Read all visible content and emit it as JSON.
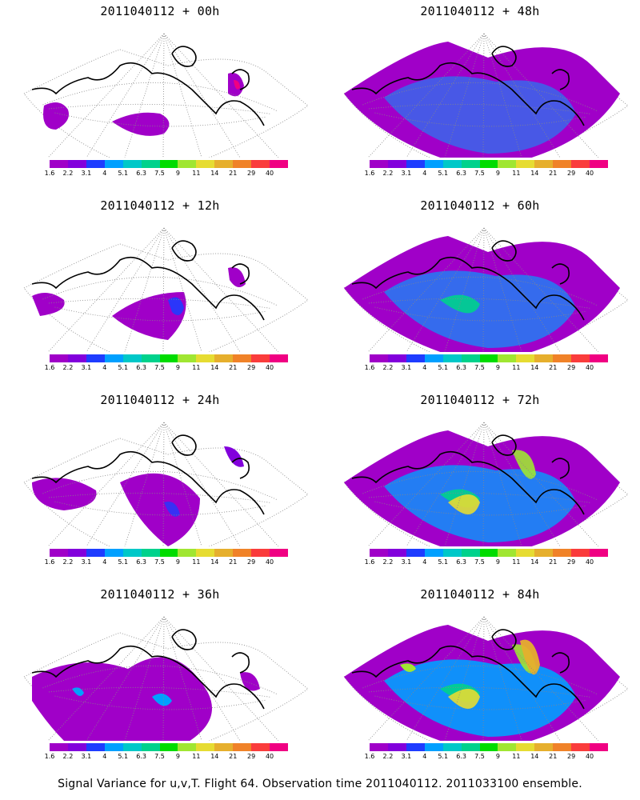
{
  "caption": "Signal Variance for u,v,T. Flight 64. Observation time 2011040112. 2011033100 ensemble.",
  "panels": [
    {
      "title": "2011040112 + 00h",
      "lead": 0
    },
    {
      "title": "2011040112 + 48h",
      "lead": 48
    },
    {
      "title": "2011040112 + 12h",
      "lead": 12
    },
    {
      "title": "2011040112 + 60h",
      "lead": 60
    },
    {
      "title": "2011040112 + 24h",
      "lead": 24
    },
    {
      "title": "2011040112 + 72h",
      "lead": 72
    },
    {
      "title": "2011040112 + 36h",
      "lead": 36
    },
    {
      "title": "2011040112 + 84h",
      "lead": 84
    }
  ],
  "colorbar": {
    "labels": [
      "1.6",
      "2.2",
      "3.1",
      "4",
      "5.1",
      "6.3",
      "7.5",
      "9",
      "11",
      "14",
      "21",
      "29",
      "40"
    ],
    "colors": [
      "#a000c8",
      "#8200dc",
      "#1e3cff",
      "#00a0ff",
      "#00c8c8",
      "#00d28c",
      "#00dc00",
      "#a0e632",
      "#e6dc32",
      "#e6af2d",
      "#f08228",
      "#fa3c3c",
      "#f00082"
    ]
  }
}
